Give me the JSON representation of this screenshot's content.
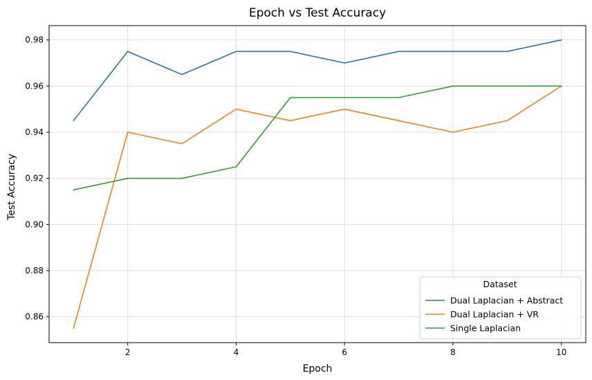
{
  "chart_data": {
    "type": "line",
    "title": "Epoch vs Test Accuracy",
    "xlabel": "Epoch",
    "ylabel": "Test Accuracy",
    "x": [
      1,
      2,
      3,
      4,
      5,
      6,
      7,
      8,
      9,
      10
    ],
    "xlim": [
      0.55,
      10.45
    ],
    "ylim": [
      0.8488,
      0.9862
    ],
    "xticks": [
      2,
      4,
      6,
      8,
      10
    ],
    "xtick_labels": [
      "2",
      "4",
      "6",
      "8",
      "10"
    ],
    "yticks": [
      0.86,
      0.88,
      0.9,
      0.92,
      0.94,
      0.96,
      0.98
    ],
    "ytick_labels": [
      "0.86",
      "0.88",
      "0.90",
      "0.92",
      "0.94",
      "0.96",
      "0.98"
    ],
    "grid": true,
    "legend_title": "Dataset",
    "legend_position": "lower-right",
    "series": [
      {
        "name": "Dual Laplacian + Abstract",
        "color": "#1f77b4",
        "values": [
          0.945,
          0.975,
          0.965,
          0.975,
          0.975,
          0.97,
          0.975,
          0.975,
          0.975,
          0.98
        ]
      },
      {
        "name": "Dual Laplacian + VR",
        "color": "#ff7f0e",
        "values": [
          0.855,
          0.94,
          0.935,
          0.95,
          0.945,
          0.95,
          0.945,
          0.94,
          0.945,
          0.96
        ]
      },
      {
        "name": "Single Laplacian",
        "color": "#2ca02c",
        "values": [
          0.915,
          0.92,
          0.92,
          0.925,
          0.955,
          0.955,
          0.955,
          0.96,
          0.96,
          0.96
        ]
      }
    ]
  }
}
